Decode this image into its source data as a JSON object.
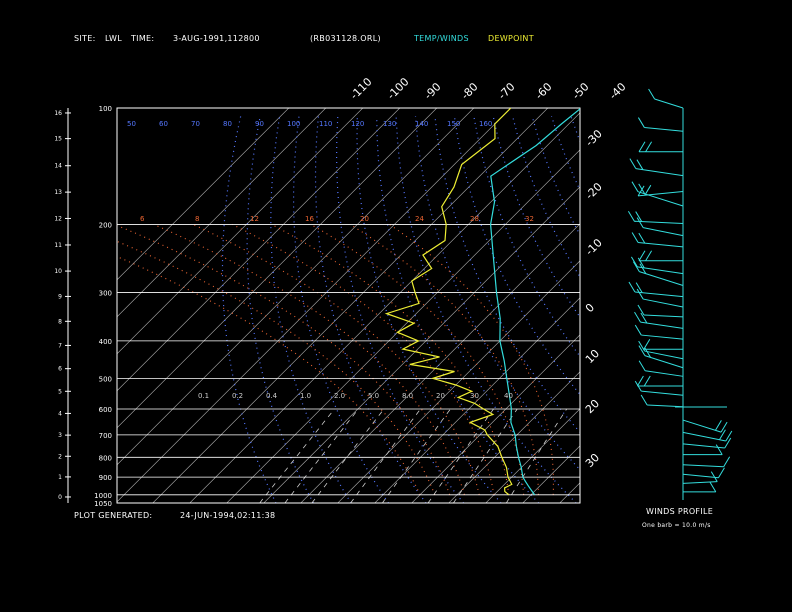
{
  "header": {
    "site_label": "SITE:",
    "site_value": "LWL",
    "time_label": "TIME:",
    "time_value": "3-AUG-1991,112800",
    "file": "(RB031128.ORL)",
    "temp_winds_label": "TEMP/WINDS",
    "dewpoint_label": "DEWPOINT"
  },
  "footer": {
    "plot_generated_label": "PLOT GENERATED:",
    "plot_generated_value": "24-JUN-1994,02:11:38"
  },
  "winds_panel": {
    "title": "WINDS PROFILE",
    "note": "One barb = 10.0 m/s"
  },
  "colors": {
    "temp": "#33dddd",
    "dewpoint": "#eeee33",
    "mixing_ratio": "#5577ff",
    "dry_adiabat": "#5577ff",
    "moist_adiabat": "#ee6633",
    "isotherm": "#aaaaaa",
    "grid": "#ffffff"
  },
  "chart_data": {
    "type": "line",
    "subtype": "skew-T log-p",
    "pressure_axis_labels": [
      "100",
      "200",
      "300",
      "400",
      "500",
      "600",
      "700",
      "800",
      "900",
      "1000",
      "1050"
    ],
    "height_axis_labels": [
      "0",
      "1",
      "2",
      "3",
      "4",
      "5",
      "6",
      "7",
      "8",
      "9",
      "10",
      "11",
      "12",
      "13",
      "14",
      "15",
      "16"
    ],
    "top_temperature_labels": [
      "-110",
      "-100",
      "-90",
      "-80",
      "-70",
      "-60",
      "-50",
      "-40"
    ],
    "right_temperature_labels": [
      "-30",
      "-20",
      "-10",
      "0",
      "10",
      "20",
      "30"
    ],
    "dry_adiabat_labels": [
      "50",
      "60",
      "70",
      "80",
      "90",
      "100",
      "110",
      "120",
      "130",
      "140",
      "150",
      "160"
    ],
    "moist_adiabat_labels": [
      "6",
      "8",
      "12",
      "16",
      "20",
      "24",
      "28",
      "32"
    ],
    "mixing_ratio_labels": [
      "0.1",
      "0.2",
      "0.4",
      "1.0",
      "2.0",
      "5.0",
      "8.0",
      "20",
      "30",
      "40"
    ],
    "series": [
      {
        "name": "TEMP/WINDS",
        "pressure_hPa": [
          1000,
          975,
          950,
          925,
          900,
          850,
          800,
          750,
          700,
          650,
          600,
          550,
          500,
          450,
          400,
          350,
          300,
          250,
          200,
          175,
          150,
          125,
          110,
          100
        ],
        "temp_C": [
          31,
          29,
          27,
          25,
          23,
          20,
          16.5,
          13,
          9.5,
          5,
          1.5,
          -3,
          -8,
          -13.5,
          -20,
          -26,
          -34,
          -43,
          -54,
          -59,
          -67,
          -63,
          -62,
          -61
        ]
      },
      {
        "name": "DEWPOINT",
        "pressure_hPa": [
          1000,
          980,
          960,
          940,
          900,
          850,
          800,
          750,
          700,
          680,
          650,
          620,
          600,
          580,
          560,
          540,
          520,
          500,
          480,
          460,
          440,
          420,
          400,
          380,
          360,
          340,
          320,
          300,
          280,
          260,
          240,
          220,
          200,
          180,
          160,
          140,
          120,
          110,
          100
        ],
        "dewpoint_C": [
          24,
          22,
          21,
          22,
          19,
          16,
          12,
          8,
          2,
          0,
          -6,
          -2,
          -6,
          -10,
          -16,
          -14,
          -20,
          -28,
          -24,
          -38,
          -32,
          -44,
          -42,
          -50,
          -48,
          -58,
          -52,
          -56,
          -60,
          -58,
          -64,
          -62,
          -66,
          -72,
          -74,
          -78,
          -76,
          -80,
          -80
        ]
      }
    ],
    "winds": {
      "pressure_hPa": [
        100,
        115,
        130,
        150,
        165,
        180,
        200,
        215,
        230,
        250,
        270,
        290,
        310,
        330,
        350,
        375,
        400,
        425,
        450,
        475,
        500,
        530,
        560,
        600,
        650,
        700,
        750,
        800,
        850,
        900,
        950,
        1000
      ],
      "direction_deg": [
        300,
        280,
        270,
        285,
        260,
        300,
        275,
        290,
        280,
        270,
        285,
        300,
        280,
        290,
        275,
        285,
        280,
        270,
        290,
        300,
        285,
        270,
        280,
        275,
        120,
        110,
        100,
        90,
        95,
        100,
        85,
        90
      ],
      "speed_ms": [
        8,
        12,
        15,
        18,
        16,
        20,
        18,
        14,
        16,
        15,
        17,
        19,
        18,
        14,
        12,
        15,
        14,
        12,
        13,
        15,
        12,
        16,
        14,
        10,
        15,
        16,
        14,
        12,
        13,
        10,
        9,
        8
      ]
    },
    "xlim": [
      -40,
      40
    ],
    "ylim": [
      1050,
      100
    ]
  }
}
